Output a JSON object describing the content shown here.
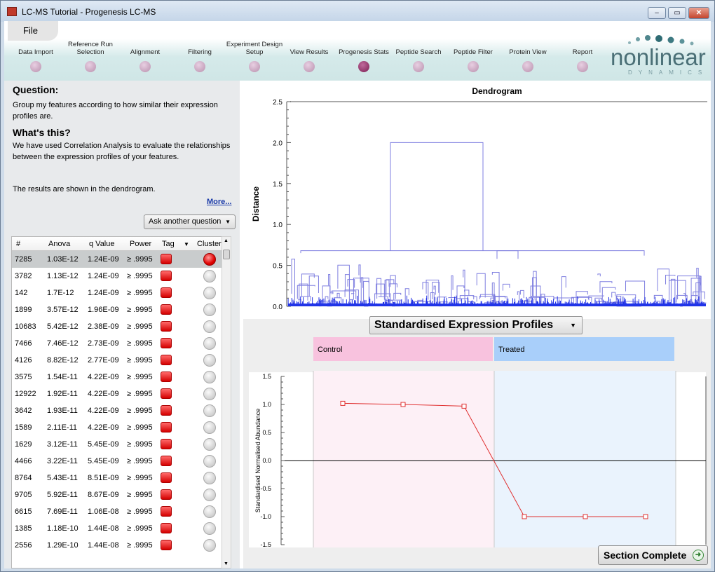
{
  "window": {
    "title": "LC-MS Tutorial - Progenesis LC-MS",
    "min": "–",
    "max": "▭",
    "close": "✕"
  },
  "menu": {
    "file": "File"
  },
  "workflow": {
    "steps": [
      {
        "label": "Data Import"
      },
      {
        "label": "Reference Run Selection"
      },
      {
        "label": "Alignment"
      },
      {
        "label": "Filtering"
      },
      {
        "label": "Experiment Design Setup"
      },
      {
        "label": "View Results"
      },
      {
        "label": "Progenesis Stats",
        "active": true
      },
      {
        "label": "Peptide Search"
      },
      {
        "label": "Peptide Filter"
      },
      {
        "label": "Protein View"
      },
      {
        "label": "Report"
      }
    ]
  },
  "logo": {
    "word": "nonlinear",
    "sub": "DYNAMICS"
  },
  "left": {
    "question_title": "Question:",
    "question_text": "Group my features according to how similar their expression profiles are.",
    "whats_title": "What's this?",
    "whats_text": "We have used Correlation Analysis to evaluate the relationships between the expression profiles of your features.",
    "whats_text2": "The results are shown in the dendrogram.",
    "more": "More...",
    "ask_button": "Ask another question"
  },
  "table": {
    "columns": [
      "#",
      "Anova",
      "q Value",
      "Power",
      "Tag",
      "Cluster"
    ],
    "rows": [
      {
        "id": "7285",
        "anova": "1.03E-12",
        "q": "1.24E-09",
        "power": "≥ .9995",
        "selected": true
      },
      {
        "id": "3782",
        "anova": "1.13E-12",
        "q": "1.24E-09",
        "power": "≥ .9995"
      },
      {
        "id": "142",
        "anova": "1.7E-12",
        "q": "1.24E-09",
        "power": "≥ .9995"
      },
      {
        "id": "1899",
        "anova": "3.57E-12",
        "q": "1.96E-09",
        "power": "≥ .9995"
      },
      {
        "id": "10683",
        "anova": "5.42E-12",
        "q": "2.38E-09",
        "power": "≥ .9995"
      },
      {
        "id": "7466",
        "anova": "7.46E-12",
        "q": "2.73E-09",
        "power": "≥ .9995"
      },
      {
        "id": "4126",
        "anova": "8.82E-12",
        "q": "2.77E-09",
        "power": "≥ .9995"
      },
      {
        "id": "3575",
        "anova": "1.54E-11",
        "q": "4.22E-09",
        "power": "≥ .9995"
      },
      {
        "id": "12922",
        "anova": "1.92E-11",
        "q": "4.22E-09",
        "power": "≥ .9995"
      },
      {
        "id": "3642",
        "anova": "1.93E-11",
        "q": "4.22E-09",
        "power": "≥ .9995"
      },
      {
        "id": "1589",
        "anova": "2.11E-11",
        "q": "4.22E-09",
        "power": "≥ .9995"
      },
      {
        "id": "1629",
        "anova": "3.12E-11",
        "q": "5.45E-09",
        "power": "≥ .9995"
      },
      {
        "id": "4466",
        "anova": "3.22E-11",
        "q": "5.45E-09",
        "power": "≥ .9995"
      },
      {
        "id": "8764",
        "anova": "5.43E-11",
        "q": "8.51E-09",
        "power": "≥ .9995"
      },
      {
        "id": "9705",
        "anova": "5.92E-11",
        "q": "8.67E-09",
        "power": "≥ .9995"
      },
      {
        "id": "6615",
        "anova": "7.69E-11",
        "q": "1.06E-08",
        "power": "≥ .9995"
      },
      {
        "id": "1385",
        "anova": "1.18E-10",
        "q": "1.44E-08",
        "power": "≥ .9995"
      },
      {
        "id": "2556",
        "anova": "1.29E-10",
        "q": "1.44E-08",
        "power": "≥ .9995"
      }
    ]
  },
  "profile_selector": "Standardised Expression Profiles",
  "section_button": "Section Complete",
  "chart_data": [
    {
      "type": "line",
      "title": "Dendrogram",
      "ylabel": "Distance",
      "ylim": [
        0,
        2.5
      ],
      "yticks": [
        "0.0",
        "0.5",
        "1.0",
        "1.5",
        "2.0",
        "2.5"
      ],
      "merges": [
        {
          "height": 2.0
        },
        {
          "height": 0.68
        },
        {
          "height": 0.68
        }
      ],
      "colors": {
        "line": "#7f7fe0"
      }
    },
    {
      "type": "line",
      "ylabel": "Standardised Normalised Abundance",
      "ylim": [
        -1.5,
        1.5
      ],
      "yticks": [
        "1.5",
        "1.0",
        "0.5",
        "0.0",
        "-0.5",
        "-1.0",
        "-1.5"
      ],
      "groups": [
        {
          "name": "Control",
          "color": "#f8c2de",
          "bg": "#fdf0f6"
        },
        {
          "name": "Treated",
          "color": "#a9cffa",
          "bg": "#eaf3fd"
        }
      ],
      "values": [
        1.02,
        1.0,
        0.97,
        -1.0,
        -1.0,
        -1.0
      ],
      "colors": {
        "line": "#e03030"
      }
    }
  ]
}
